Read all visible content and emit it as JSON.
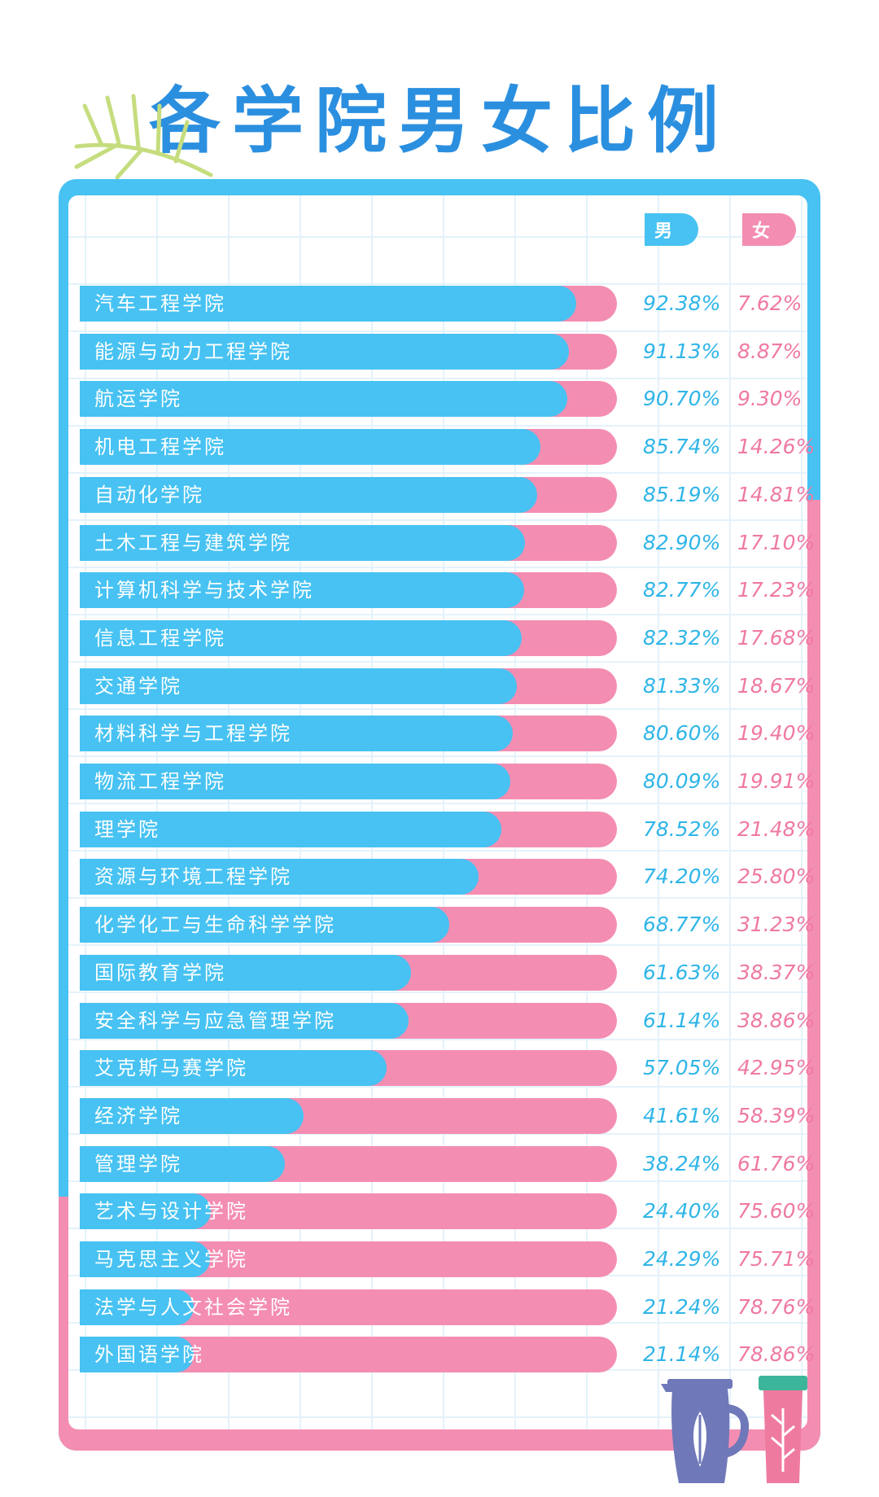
{
  "title": "各学院男女比例",
  "colors": {
    "male": "#47c2f2",
    "female": "#f48db2",
    "title": "#2b8fe0"
  },
  "legend": {
    "male": "男",
    "female": "女"
  },
  "chart_data": {
    "type": "bar",
    "orientation": "horizontal",
    "stacked": true,
    "title": "各学院男女比例",
    "grid": true,
    "categories": [
      "汽车工程学院",
      "能源与动力工程学院",
      "航运学院",
      "机电工程学院",
      "自动化学院",
      "土木工程与建筑学院",
      "计算机科学与技术学院",
      "信息工程学院",
      "交通学院",
      "材料科学与工程学院",
      "物流工程学院",
      "理学院",
      "资源与环境工程学院",
      "化学化工与生命科学学院",
      "国际教育学院",
      "安全科学与应急管理学院",
      "艾克斯马赛学院",
      "经济学院",
      "管理学院",
      "艺术与设计学院",
      "马克思主义学院",
      "法学与人文社会学院",
      "外国语学院"
    ],
    "series": [
      {
        "name": "男",
        "values": [
          92.38,
          91.13,
          90.7,
          85.74,
          85.19,
          82.9,
          82.77,
          82.32,
          81.33,
          80.6,
          80.09,
          78.52,
          74.2,
          68.77,
          61.63,
          61.14,
          57.05,
          41.61,
          38.24,
          24.4,
          24.29,
          21.24,
          21.14
        ]
      },
      {
        "name": "女",
        "values": [
          7.62,
          8.87,
          9.3,
          14.26,
          14.81,
          17.1,
          17.23,
          17.68,
          18.67,
          19.4,
          19.91,
          21.48,
          25.8,
          31.23,
          38.37,
          38.86,
          42.95,
          58.39,
          61.76,
          75.6,
          75.71,
          78.76,
          78.86
        ]
      }
    ],
    "labels_male": [
      "92.38%",
      "91.13%",
      "90.70%",
      "85.74%",
      "85.19%",
      "82.90%",
      "82.77%",
      "82.32%",
      "81.33%",
      "80.60%",
      "80.09%",
      "78.52%",
      "74.20%",
      "68.77%",
      "61.63%",
      "61.14%",
      "57.05%",
      "41.61%",
      "38.24%",
      "24.40%",
      "24.29%",
      "21.24%",
      "21.14%"
    ],
    "labels_female": [
      "7.62%",
      "8.87%",
      "9.30%",
      "14.26%",
      "14.81%",
      "17.10%",
      "17.23%",
      "17.68%",
      "18.67%",
      "19.40%",
      "19.91%",
      "21.48%",
      "25.80%",
      "31.23%",
      "38.37%",
      "38.86%",
      "42.95%",
      "58.39%",
      "61.76%",
      "75.60%",
      "75.71%",
      "78.76%",
      "78.86%"
    ],
    "xlim": [
      0,
      100
    ]
  }
}
